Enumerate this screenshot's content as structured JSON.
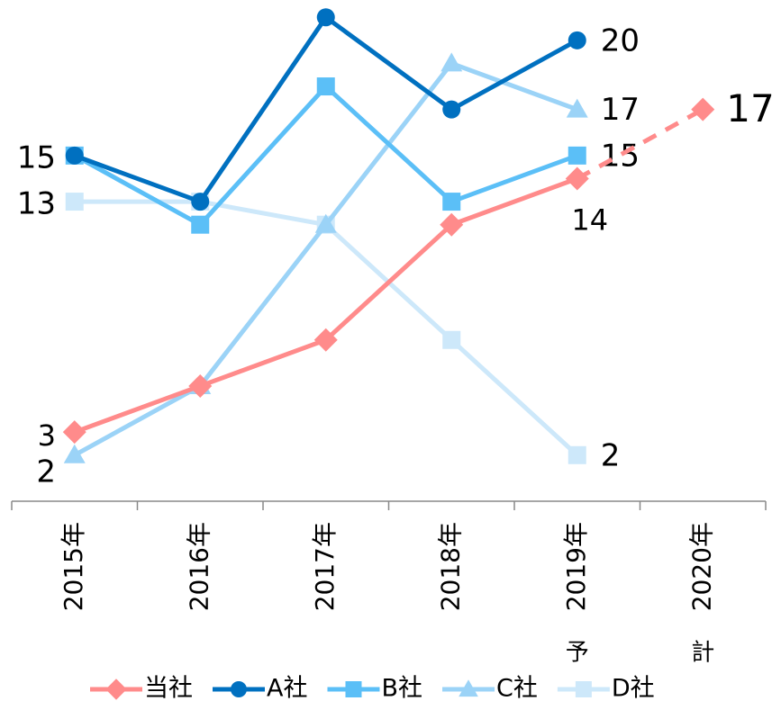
{
  "chart_data": {
    "type": "line",
    "categories": [
      "2015年",
      "2016年",
      "2017年",
      "2018年",
      "2019年",
      "2020年"
    ],
    "category_notes": [
      null,
      null,
      null,
      null,
      "予",
      "計"
    ],
    "ylim": [
      0,
      21.75
    ],
    "series": [
      {
        "name": "当社",
        "color": "#ff8b8b",
        "marker": "diamond",
        "label_color": "#e00000",
        "dash_from": 4,
        "values": [
          3,
          5,
          7,
          12,
          14,
          17
        ],
        "value_labels": [
          "3",
          null,
          null,
          null,
          "14",
          "17"
        ]
      },
      {
        "name": "A社",
        "color": "#0070c0",
        "marker": "circle",
        "values": [
          15,
          13,
          21,
          17,
          20,
          null
        ],
        "value_labels": [
          "15",
          null,
          null,
          null,
          "20",
          null
        ]
      },
      {
        "name": "B社",
        "color": "#5bbff7",
        "marker": "square",
        "values": [
          15,
          12,
          18,
          13,
          15,
          null
        ],
        "value_labels": [
          null,
          null,
          null,
          null,
          "15",
          null
        ]
      },
      {
        "name": "C社",
        "color": "#9bd3f7",
        "marker": "triangle",
        "values": [
          2,
          5,
          12,
          19,
          17,
          null
        ],
        "value_labels": [
          "2",
          null,
          null,
          null,
          "17",
          null
        ]
      },
      {
        "name": "D社",
        "color": "#cde8fa",
        "marker": "square",
        "values": [
          13,
          13,
          12,
          7,
          2,
          null
        ],
        "value_labels": [
          "13",
          null,
          null,
          null,
          "2",
          null
        ]
      }
    ]
  }
}
